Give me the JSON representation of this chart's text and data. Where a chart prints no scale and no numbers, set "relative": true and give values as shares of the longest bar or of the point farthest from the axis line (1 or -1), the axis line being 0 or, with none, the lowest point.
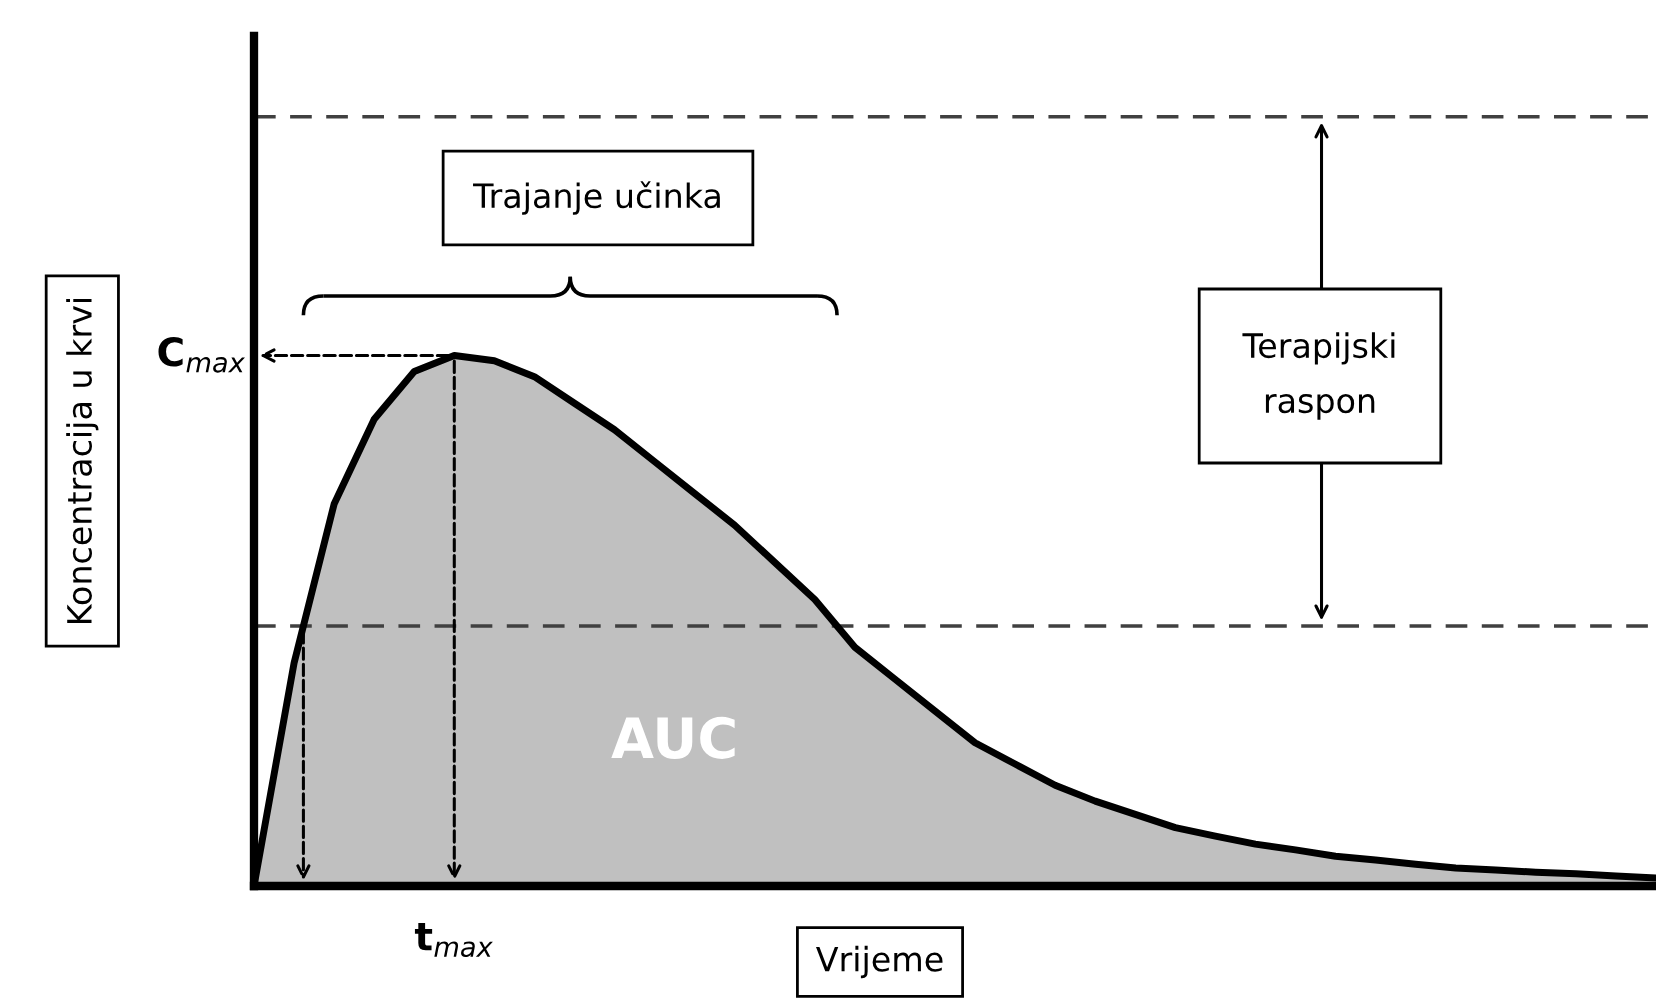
{
  "chart_data": {
    "type": "area",
    "relative": true,
    "xlabel": "Vrijeme",
    "ylabel": "Koncentracija u krvi",
    "categories": [
      null,
      null,
      null,
      null,
      null,
      null,
      null,
      null,
      null,
      null,
      null,
      null,
      null,
      null,
      null,
      null,
      null,
      null,
      null,
      null,
      null,
      null,
      null,
      null,
      null,
      null,
      null,
      null,
      null,
      null,
      null,
      null,
      null,
      null,
      null,
      null
    ],
    "series": [
      {
        "color": "#c0c0c0",
        "values": [
          0,
          0.42,
          0.72,
          0.88,
          0.97,
          1.0,
          0.99,
          0.96,
          0.91,
          0.86,
          0.8,
          0.74,
          0.68,
          0.61,
          0.54,
          0.45,
          0.39,
          0.33,
          0.27,
          0.23,
          0.19,
          0.16,
          0.135,
          0.11,
          0.094,
          0.079,
          0.068,
          0.056,
          0.049,
          0.041,
          0.034,
          0.03,
          0.026,
          0.023,
          0.019,
          0.015
        ]
      }
    ],
    "ref_lines": [
      {
        "axis": "y",
        "value": 1.45,
        "color": "#404040",
        "line_style": "dashed"
      },
      {
        "axis": "y",
        "value": 0.49,
        "color": "#404040",
        "line_style": "dashed"
      }
    ],
    "annotations": [
      "Trajanje učinka",
      "Terapijski\nraspon",
      "AUC",
      "C$_{max}$",
      "t$_{max}$"
    ]
  }
}
